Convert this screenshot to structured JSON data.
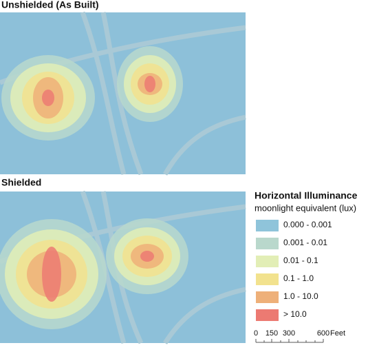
{
  "maps": [
    {
      "title": "Unshielded (As Built)"
    },
    {
      "title": "Shielded"
    }
  ],
  "legend": {
    "title": "Horizontal Illuminance",
    "subtitle": "moonlight equivalent (lux)",
    "items": [
      {
        "label": "0.000 - 0.001",
        "color": "#8fc4da"
      },
      {
        "label": "0.001 - 0.01",
        "color": "#b9d8cc"
      },
      {
        "label": "0.01 - 0.1",
        "color": "#e2eeb6"
      },
      {
        "label": "0.1 - 1.0",
        "color": "#f2e28e"
      },
      {
        "label": "1.0 - 10.0",
        "color": "#eeb079"
      },
      {
        "label": "> 10.0",
        "color": "#ec7a72"
      }
    ]
  },
  "scale_bar": {
    "labels": [
      "0",
      "150",
      "300",
      "600"
    ],
    "unit": "Feet"
  }
}
